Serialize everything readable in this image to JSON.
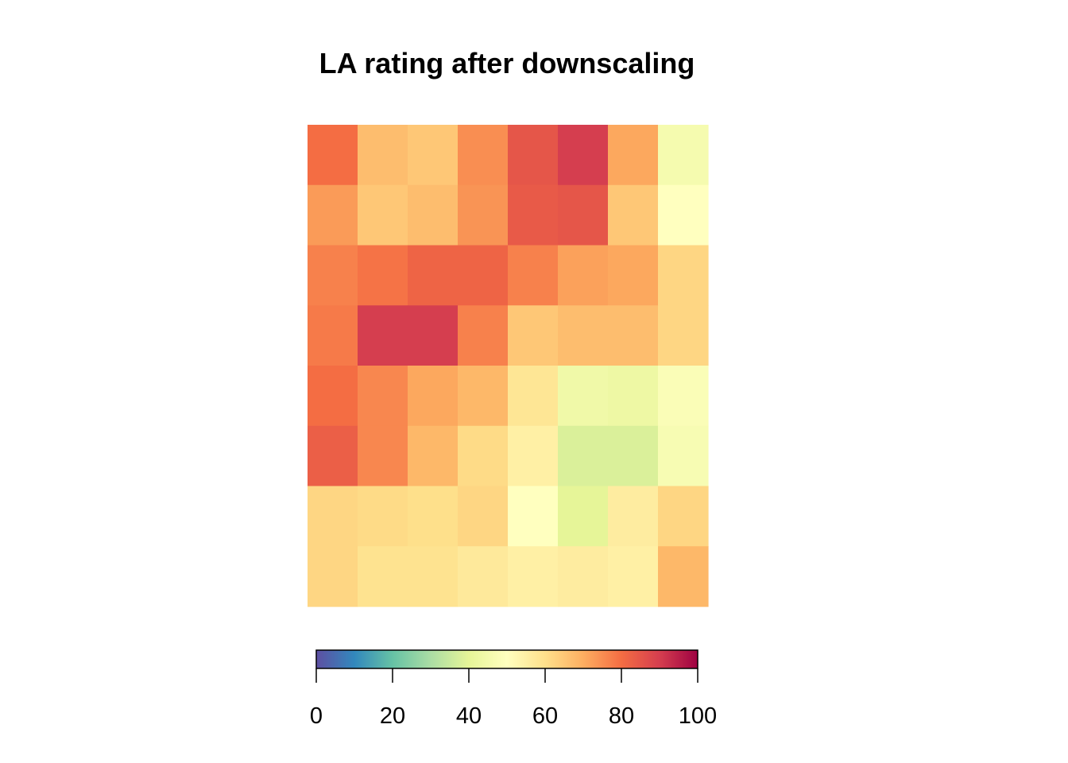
{
  "chart_data": {
    "type": "heatmap",
    "title": "LA rating after downscaling",
    "rows": 8,
    "cols": 8,
    "values": [
      [
        80,
        67,
        65,
        75,
        85,
        90,
        71,
        46
      ],
      [
        73,
        65,
        67,
        74,
        84,
        85,
        65,
        50
      ],
      [
        77,
        79,
        82,
        82,
        77,
        72,
        71,
        62
      ],
      [
        78,
        90,
        90,
        77,
        65,
        67,
        67,
        62
      ],
      [
        80,
        76,
        71,
        68,
        58,
        44,
        43,
        48
      ],
      [
        83,
        76,
        68,
        61,
        55,
        38,
        38,
        47
      ],
      [
        62,
        61,
        60,
        62,
        50,
        40,
        56,
        62
      ],
      [
        62,
        59,
        59,
        57,
        55,
        56,
        55,
        68
      ]
    ],
    "colorbar": {
      "min": 0,
      "max": 100,
      "ticks": [
        0,
        20,
        40,
        60,
        80,
        100
      ],
      "tick_labels": [
        "0",
        "20",
        "40",
        "60",
        "80",
        "100"
      ],
      "palette": [
        "#5E4FA2",
        "#3288BD",
        "#66C2A5",
        "#ABDDA4",
        "#E6F598",
        "#FFFFBF",
        "#FEE08B",
        "#FDAE61",
        "#F46D43",
        "#D53E4F",
        "#9E0142"
      ]
    }
  }
}
